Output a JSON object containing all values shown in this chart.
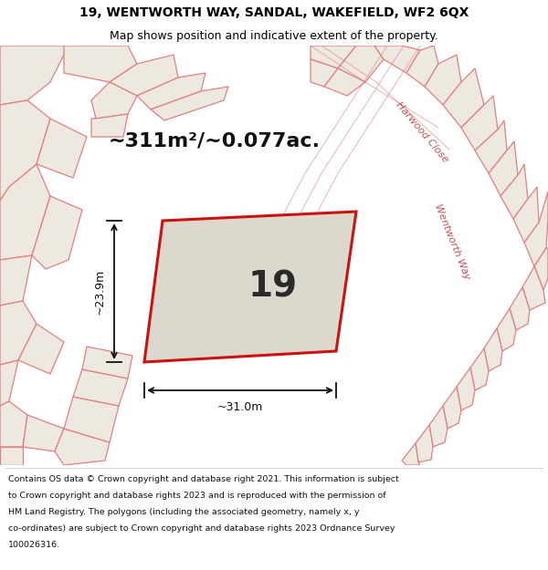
{
  "title_line1": "19, WENTWORTH WAY, SANDAL, WAKEFIELD, WF2 6QX",
  "title_line2": "Map shows position and indicative extent of the property.",
  "area_label": "~311m²/~0.077ac.",
  "property_number": "19",
  "dim_width": "~31.0m",
  "dim_height": "~23.9m",
  "road_label1": "Harwood Close",
  "road_label2": "Wentworth Way",
  "footer_lines": [
    "Contains OS data © Crown copyright and database right 2021. This information is subject",
    "to Crown copyright and database rights 2023 and is reproduced with the permission of",
    "HM Land Registry. The polygons (including the associated geometry, namely x, y",
    "co-ordinates) are subject to Crown copyright and database rights 2023 Ordnance Survey",
    "100026316."
  ],
  "bg_color": "#f2efea",
  "property_fill": "#ddd8ce",
  "property_edge": "#cc1111",
  "surrounding_edge": "#e08080",
  "surrounding_fill": "#ede8e0",
  "white": "#ffffff",
  "title_fontsize": 10,
  "subtitle_fontsize": 9,
  "area_fontsize": 16,
  "number_fontsize": 28,
  "dim_fontsize": 9,
  "road_fontsize": 8,
  "footer_fontsize": 6.8
}
